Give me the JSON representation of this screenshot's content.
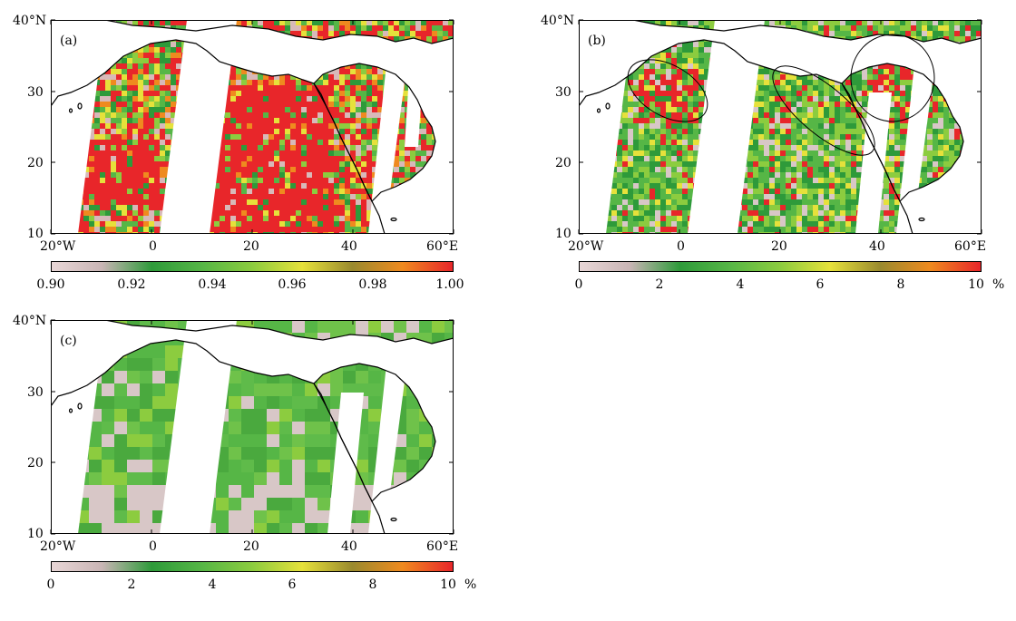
{
  "colors": {
    "ocean": "#ffffff",
    "land_gap": "#ffffff",
    "coast": "#000000",
    "scale": [
      "#e8d6d6",
      "#c9b5b5",
      "#2e9a3a",
      "#56b646",
      "#8ccc3f",
      "#e6e13b",
      "#9a8a2e",
      "#ef8a1f",
      "#e8262a"
    ]
  },
  "panels": [
    {
      "label": "(a)",
      "y_ticks": [
        "40°N",
        "30",
        "20",
        "10"
      ],
      "x_ticks": [
        "20°W",
        "0",
        "20",
        "40",
        "60°E"
      ],
      "colorbar_ticks": [
        "0.90",
        "0.92",
        "0.94",
        "0.96",
        "0.98",
        "1.00"
      ],
      "unit": "",
      "dominant": "mixed-red"
    },
    {
      "label": "(b)",
      "y_ticks": [
        "40°N",
        "30",
        "20",
        "10"
      ],
      "x_ticks": [
        "20°W",
        "0",
        "20",
        "40",
        "60°E"
      ],
      "colorbar_ticks": [
        "0",
        "2",
        "4",
        "6",
        "8",
        "10"
      ],
      "unit": "%",
      "dominant": "mixed-green"
    },
    {
      "label": "(c)",
      "y_ticks": [
        "40°N",
        "30",
        "20",
        "10"
      ],
      "x_ticks": [
        "20°W",
        "0",
        "20",
        "40",
        "60°E"
      ],
      "colorbar_ticks": [
        "0",
        "2",
        "4",
        "6",
        "8",
        "10"
      ],
      "unit": "%",
      "dominant": "smooth-green"
    }
  ]
}
